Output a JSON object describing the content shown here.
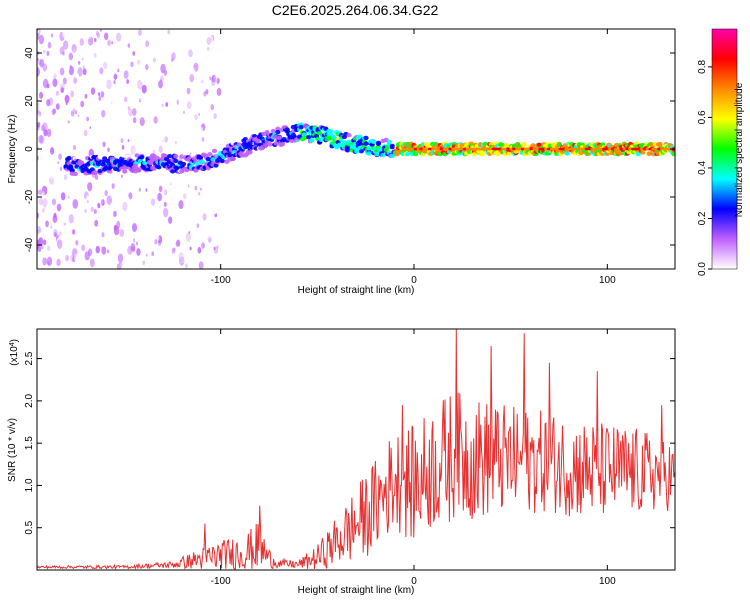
{
  "title": "C2E6.2025.264.06.34.G22",
  "chart_data": [
    {
      "type": "heatmap",
      "xlabel": "Height of straight line (km)",
      "ylabel": "Frequency (Hz)",
      "xlim": [
        -195,
        135
      ],
      "ylim": [
        -50,
        50
      ],
      "xticks": [
        -100,
        0,
        100
      ],
      "yticks": [
        -40,
        -20,
        0,
        20,
        40
      ],
      "xtick_labels": [
        "-100",
        "0",
        "100"
      ],
      "ytick_labels": [
        "-40",
        "-20",
        "0",
        "20",
        "40"
      ],
      "ridge": {
        "x": [
          -175,
          -150,
          -125,
          -110,
          -100,
          -90,
          -80,
          -70,
          -60,
          -50,
          -40,
          -30,
          -20,
          -10,
          0,
          20,
          50,
          80,
          110,
          135
        ],
        "y": [
          -7,
          -6,
          -6,
          -6,
          -3,
          0,
          3,
          5,
          7,
          6,
          4,
          2,
          1,
          0,
          0,
          0,
          0,
          0,
          0,
          0
        ]
      },
      "colorbar": {
        "label": "Normalized spectral amplitude",
        "range": [
          0,
          0.95
        ],
        "ticks": [
          0.0,
          0.2,
          0.4,
          0.6,
          0.8
        ],
        "tick_labels": [
          "0.0",
          "0.2",
          "0.4",
          "0.6",
          "0.8"
        ],
        "colors": [
          "#ffffff",
          "#c060ff",
          "#0000ff",
          "#00ffff",
          "#00ff00",
          "#ffff00",
          "#ff8800",
          "#ff0000",
          "#ff00aa"
        ]
      }
    },
    {
      "type": "line",
      "xlabel": "Height of straight line (km)",
      "ylabel": "SNR (10 * v/v)",
      "scale_label": "(x10",
      "scale_exponent": "4",
      "xlim": [
        -195,
        135
      ],
      "ylim": [
        0,
        2.85
      ],
      "xticks": [
        -100,
        0,
        100
      ],
      "yticks": [
        0.5,
        1.0,
        1.5,
        2.0,
        2.5
      ],
      "xtick_labels": [
        "-100",
        "0",
        "100"
      ],
      "ytick_labels": [
        "0.5",
        "1.0",
        "1.5",
        "2.0",
        "2.5"
      ],
      "color": "#e83030",
      "envelope": {
        "x": [
          -195,
          -150,
          -125,
          -115,
          -105,
          -95,
          -85,
          -80,
          -75,
          -70,
          -60,
          -50,
          -40,
          -30,
          -20,
          -10,
          0,
          10,
          20,
          30,
          50,
          70,
          90,
          110,
          130,
          135
        ],
        "base": [
          0.03,
          0.03,
          0.05,
          0.08,
          0.1,
          0.12,
          0.15,
          0.2,
          0.1,
          0.06,
          0.05,
          0.1,
          0.25,
          0.4,
          0.6,
          0.9,
          0.8,
          1.0,
          1.1,
          1.1,
          1.1,
          1.1,
          1.0,
          1.0,
          1.0,
          1.0
        ],
        "amp": [
          0.03,
          0.04,
          0.08,
          0.2,
          0.35,
          0.4,
          0.5,
          0.6,
          0.25,
          0.1,
          0.1,
          0.3,
          0.6,
          0.9,
          1.1,
          1.2,
          1.4,
          1.5,
          1.6,
          1.5,
          1.3,
          1.2,
          1.2,
          1.1,
          0.9,
          0.8
        ]
      },
      "peaks": [
        {
          "x": -108,
          "y": 0.55
        },
        {
          "x": -80,
          "y": 0.76
        },
        {
          "x": -6,
          "y": 1.95
        },
        {
          "x": 22,
          "y": 2.85
        },
        {
          "x": 40,
          "y": 2.65
        },
        {
          "x": 57,
          "y": 2.8
        },
        {
          "x": 70,
          "y": 2.45
        },
        {
          "x": 95,
          "y": 2.35
        },
        {
          "x": 128,
          "y": 1.95
        }
      ]
    }
  ]
}
